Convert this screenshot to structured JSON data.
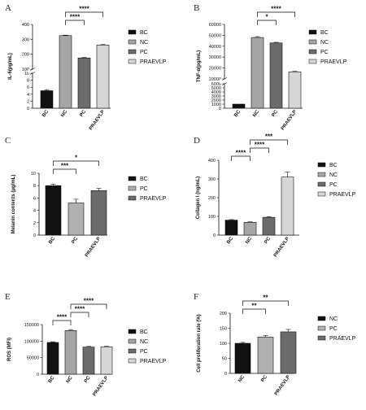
{
  "chart_data": [
    {
      "panel": "A",
      "type": "bar",
      "ylabel": "IL-6(pg/mL)",
      "categories": [
        "BC",
        "NC",
        "PC",
        "PRAEVLP"
      ],
      "values": [
        5,
        325,
        175,
        262
      ],
      "errors": [
        0.3,
        3,
        3,
        3
      ],
      "colors": [
        "#111111",
        "#a5a5a5",
        "#6b6b6b",
        "#d6d6d6"
      ],
      "y_axis_break": true,
      "lower_ticks": [
        0,
        2,
        4,
        6,
        8,
        10
      ],
      "upper_ticks": [
        100,
        200,
        300,
        400
      ],
      "legend": [
        "BC",
        "NC",
        "PC",
        "PRAEVLP"
      ],
      "comparisons": [
        {
          "from": "NC",
          "to": "PC",
          "label": "****"
        },
        {
          "from": "NC",
          "to": "PRAEVLP",
          "label": "****"
        }
      ]
    },
    {
      "panel": "B",
      "type": "bar",
      "ylabel": "TNF-α(pg/mL)",
      "categories": [
        "BC",
        "NC",
        "PC",
        "PRAEVLP"
      ],
      "values": [
        1000,
        48000,
        43000,
        16500
      ],
      "errors": [
        0,
        800,
        600,
        400
      ],
      "colors": [
        "#111111",
        "#a5a5a5",
        "#6b6b6b",
        "#d6d6d6"
      ],
      "y_axis_break": true,
      "lower_ticks": [
        0,
        1000,
        2000,
        3000,
        4000,
        5000,
        6000
      ],
      "upper_ticks": [
        10000,
        20000,
        30000,
        40000,
        50000,
        60000
      ],
      "legend": [
        "BC",
        "NC",
        "PC",
        "PRAEVLP"
      ],
      "comparisons": [
        {
          "from": "NC",
          "to": "PC",
          "label": "*"
        },
        {
          "from": "NC",
          "to": "PRAEVLP",
          "label": "****"
        }
      ]
    },
    {
      "panel": "C",
      "type": "bar",
      "ylabel": "Melanin contents (μg/mL)",
      "categories": [
        "BC",
        "PC",
        "PRAEVLP"
      ],
      "values": [
        8.0,
        5.2,
        7.2
      ],
      "errors": [
        0.25,
        0.6,
        0.35
      ],
      "colors": [
        "#111111",
        "#b0b0b0",
        "#6b6b6b"
      ],
      "ylim": [
        0,
        10
      ],
      "yticks": [
        0,
        2,
        4,
        6,
        8,
        10
      ],
      "legend": [
        "BC",
        "PC",
        "PRAEVLP"
      ],
      "comparisons": [
        {
          "from": "BC",
          "to": "PC",
          "label": "***"
        },
        {
          "from": "BC",
          "to": "PRAEVLP",
          "label": "*"
        }
      ]
    },
    {
      "panel": "D",
      "type": "bar",
      "ylabel": "Collagen I (ng/mL)",
      "categories": [
        "BC",
        "NC",
        "PC",
        "PRAEVLP"
      ],
      "values": [
        80,
        68,
        95,
        310
      ],
      "errors": [
        3,
        3,
        4,
        28
      ],
      "colors": [
        "#111111",
        "#a5a5a5",
        "#6b6b6b",
        "#d6d6d6"
      ],
      "ylim": [
        0,
        400
      ],
      "yticks": [
        0,
        100,
        200,
        300,
        400
      ],
      "legend": [
        "BC",
        "NC",
        "PC",
        "PRAEVLP"
      ],
      "comparisons": [
        {
          "from": "BC",
          "to": "NC",
          "label": "****"
        },
        {
          "from": "NC",
          "to": "PC",
          "label": "****"
        },
        {
          "from": "NC",
          "to": "PRAEVLP",
          "label": "***"
        }
      ]
    },
    {
      "panel": "E",
      "type": "bar",
      "ylabel": "ROS (MFI)",
      "categories": [
        "BC",
        "NC",
        "PC",
        "PRAEVLP"
      ],
      "values": [
        96000,
        132000,
        82000,
        83000
      ],
      "errors": [
        2000,
        3000,
        2000,
        1500
      ],
      "colors": [
        "#111111",
        "#a5a5a5",
        "#6b6b6b",
        "#d6d6d6"
      ],
      "ylim": [
        0,
        150000
      ],
      "yticks": [
        0,
        50000,
        100000,
        150000
      ],
      "legend": [
        "BC",
        "NC",
        "PC",
        "PRAEVLP"
      ],
      "comparisons": [
        {
          "from": "BC",
          "to": "NC",
          "label": "****"
        },
        {
          "from": "NC",
          "to": "PC",
          "label": "****"
        },
        {
          "from": "NC",
          "to": "PRAEVLP",
          "label": "****"
        }
      ]
    },
    {
      "panel": "F",
      "type": "bar",
      "ylabel": "Cell proliferation rate (%)",
      "categories": [
        "NC",
        "PC",
        "PRAEVLP"
      ],
      "values": [
        100,
        121,
        138
      ],
      "errors": [
        3,
        5,
        8
      ],
      "colors": [
        "#111111",
        "#b0b0b0",
        "#6b6b6b"
      ],
      "ylim": [
        0,
        200
      ],
      "yticks": [
        0,
        50,
        100,
        150,
        200
      ],
      "legend": [
        "NC",
        "PC",
        "PRAEVLP"
      ],
      "comparisons": [
        {
          "from": "NC",
          "to": "PC",
          "label": "**"
        },
        {
          "from": "NC",
          "to": "PRAEVLP",
          "label": "**"
        }
      ]
    }
  ]
}
